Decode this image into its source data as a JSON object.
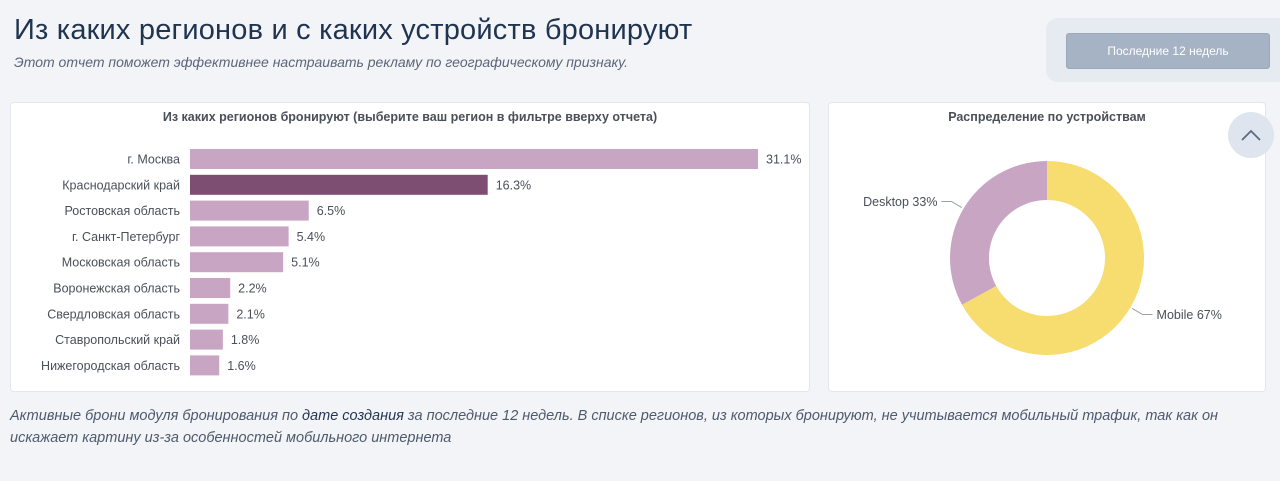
{
  "header": {
    "title": "Из каких регионов и с каких устройств бронируют",
    "subtitle": "Этот отчет поможет эффективнее настраивать рекламу по географическому признаку."
  },
  "filter": {
    "period_label": "Последние 12 недель"
  },
  "scroll_up": {
    "icon": "chevron-up-icon"
  },
  "footer": {
    "part1": "Активные брони модуля бронирования по ",
    "highlight": "дате создания",
    "part2": " за последние 12 недель. В списке регионов, из которых бронируют, не учитывается мобильный трафик, так как он искажает картину из-за особенностей мобильного интернета"
  },
  "chart_data": [
    {
      "type": "bar",
      "orientation": "horizontal",
      "title": "Из каких регионов бронируют (выберите ваш регион в фильтре вверху отчета)",
      "categories": [
        "г. Москва",
        "Краснодарский край",
        "Ростовская область",
        "г. Санкт-Петербург",
        "Московская область",
        "Воронежская область",
        "Свердловская область",
        "Ставропольский край",
        "Нижегородская область"
      ],
      "values": [
        31.1,
        16.3,
        6.5,
        5.4,
        5.1,
        2.2,
        2.1,
        1.8,
        1.6
      ],
      "value_labels": [
        "31.1%",
        "16.3%",
        "6.5%",
        "5.4%",
        "5.1%",
        "2.2%",
        "2.1%",
        "1.8%",
        "1.6%"
      ],
      "highlighted_index": 1,
      "colors": {
        "bar": "#c9a5c4",
        "highlight": "#7e4e72"
      },
      "grid": false
    },
    {
      "type": "pie",
      "donut": true,
      "title": "Распределение по устройствам",
      "slices": [
        {
          "label": "Mobile 67%",
          "value": 67,
          "color": "#f7dc6f"
        },
        {
          "label": "Desktop 33%",
          "value": 33,
          "color": "#c9a5c4"
        }
      ]
    }
  ]
}
